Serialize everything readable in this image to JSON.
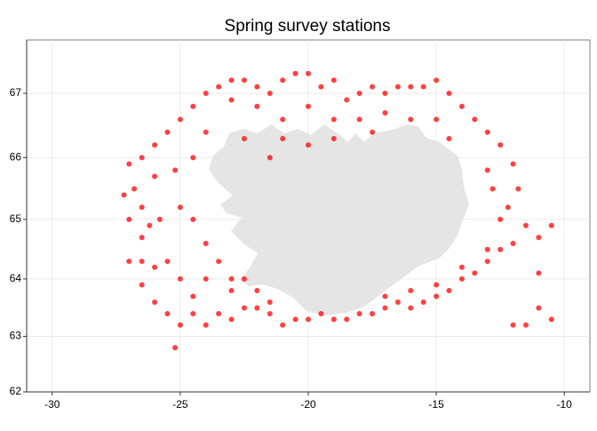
{
  "chart_data": {
    "type": "scatter",
    "title": "Spring survey stations",
    "projection": "mercator",
    "grid": true,
    "color": "#ff0000",
    "xlim": [
      -31,
      -9
    ],
    "ylim": [
      62,
      67.8
    ],
    "xticks": [
      -30,
      -25,
      -20,
      -15,
      -10
    ],
    "yticks": [
      62,
      63,
      64,
      65,
      66,
      67
    ],
    "x": [
      -27,
      -26.8,
      -26.5,
      -26,
      -25.5,
      -25,
      -24.5,
      -24,
      -23.5,
      -23,
      -22.5,
      -22,
      -21.5,
      -21,
      -20.5,
      -20,
      -19.5,
      -19,
      -18.5,
      -18,
      -17.5,
      -17,
      -16.5,
      -16,
      -15.5,
      -15,
      -14.5,
      -14,
      -13.5,
      -13,
      -12.5,
      -12,
      -11.8,
      -12.2,
      -12.5,
      -11.5,
      -11,
      -12,
      -12.5,
      -13,
      -13.5,
      -14,
      -14.5,
      -15,
      -15.5,
      -16,
      -16.5,
      -17,
      -17.5,
      -18,
      -18.5,
      -19,
      -19.5,
      -20,
      -20.5,
      -21,
      -21.5,
      -22,
      -22.5,
      -23,
      -23.5,
      -24,
      -24.5,
      -25,
      -25.5,
      -25,
      -25.5,
      -26,
      -26.5,
      -27,
      -26.5,
      -27,
      -27.2,
      -26.5,
      -25,
      -24.5,
      -24,
      -23.5,
      -23,
      -24,
      -24.5,
      -23,
      -22.5,
      -22,
      -21.5,
      -17,
      -16,
      -15,
      -14,
      -13,
      -12.8,
      -13,
      -11,
      -11,
      -11.5,
      -10.5,
      -10.5,
      -12,
      -24,
      -23,
      -22,
      -21,
      -20,
      -19,
      -18,
      -17,
      -16,
      -15,
      -14.5,
      -24.5,
      -25.2,
      -26,
      -25.8,
      -26.2,
      -21,
      -20,
      -21.5,
      -19,
      -17.5,
      -22.5,
      -26,
      -26.5,
      -25.2
    ],
    "y": [
      65.9,
      65.5,
      66.0,
      66.2,
      66.4,
      66.6,
      66.8,
      67.0,
      67.1,
      67.2,
      67.2,
      67.1,
      67.0,
      67.2,
      67.3,
      67.3,
      67.1,
      67.2,
      66.9,
      67.0,
      67.1,
      67.0,
      67.1,
      67.1,
      67.1,
      67.2,
      67.0,
      66.8,
      66.6,
      66.4,
      66.2,
      65.9,
      65.5,
      65.2,
      65.0,
      64.9,
      64.7,
      64.6,
      64.5,
      64.3,
      64.1,
      64.0,
      63.8,
      63.7,
      63.6,
      63.5,
      63.6,
      63.5,
      63.4,
      63.4,
      63.3,
      63.3,
      63.4,
      63.3,
      63.3,
      63.2,
      63.4,
      63.5,
      63.5,
      63.3,
      63.4,
      63.2,
      63.4,
      63.2,
      63.4,
      64.0,
      64.3,
      64.2,
      64.3,
      64.3,
      64.7,
      65.0,
      65.4,
      65.2,
      65.2,
      65.0,
      64.6,
      64.3,
      64.0,
      64.0,
      63.7,
      63.8,
      64.0,
      63.8,
      63.6,
      63.7,
      63.8,
      63.9,
      64.2,
      64.5,
      65.5,
      65.8,
      64.1,
      63.5,
      63.2,
      63.3,
      64.9,
      63.2,
      66.4,
      66.9,
      66.8,
      66.6,
      66.8,
      66.6,
      66.6,
      66.7,
      66.6,
      66.6,
      66.3,
      66.0,
      65.8,
      65.7,
      65.0,
      64.9,
      66.3,
      66.2,
      66.0,
      66.3,
      66.4,
      66.3,
      63.6,
      63.9,
      62.8
    ]
  }
}
